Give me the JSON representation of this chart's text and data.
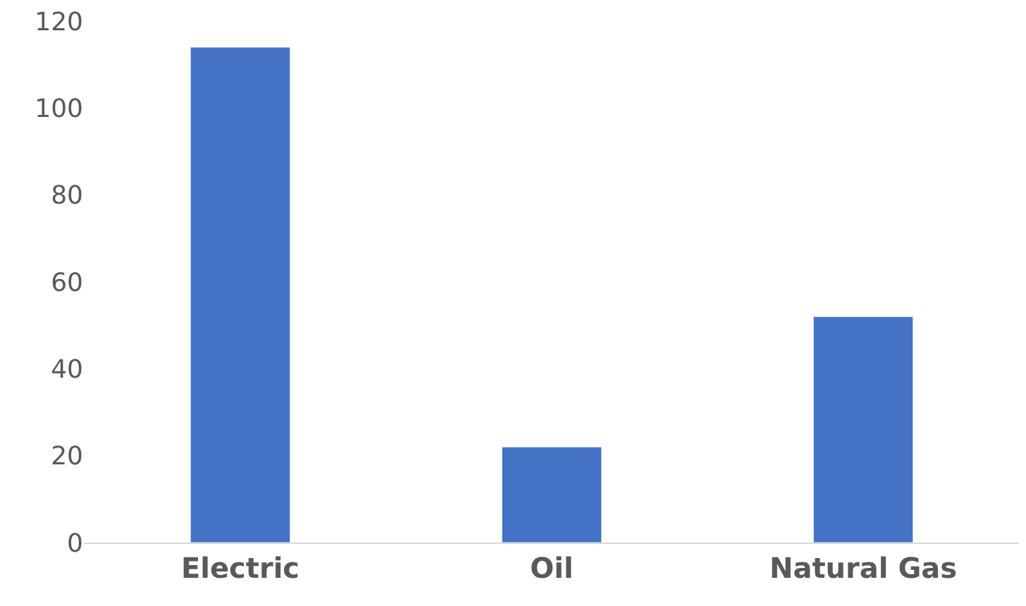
{
  "chart_data": {
    "type": "bar",
    "categories": [
      "Electric",
      "Oil",
      "Natural Gas"
    ],
    "values": [
      114,
      22,
      52
    ],
    "color": "#4472c4",
    "ylim": [
      0,
      120
    ],
    "yticks": [
      0,
      20,
      40,
      60,
      80,
      100,
      120
    ],
    "grid": false,
    "legend": false
  }
}
